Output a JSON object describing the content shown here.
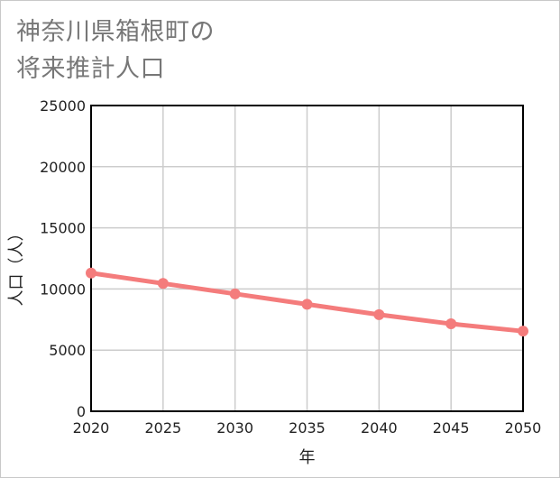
{
  "chart_data": {
    "type": "line",
    "title_lines": [
      "神奈川県箱根町の",
      "将来推計人口"
    ],
    "xlabel": "年",
    "ylabel": "人口（人）",
    "x": [
      2020,
      2025,
      2030,
      2035,
      2040,
      2045,
      2050
    ],
    "x_tick_labels": [
      "2020",
      "2025",
      "2030",
      "2035",
      "2040",
      "2045",
      "2050"
    ],
    "xlim": [
      2020,
      2050
    ],
    "ylim": [
      0,
      25000
    ],
    "y_ticks": [
      0,
      5000,
      10000,
      15000,
      20000,
      25000
    ],
    "y_tick_labels": [
      "0",
      "5000",
      "10000",
      "15000",
      "20000",
      "25000"
    ],
    "series": [
      {
        "name": "将来推計人口",
        "values": [
          11300,
          10450,
          9600,
          8750,
          7900,
          7150,
          6550
        ],
        "color": "#f47c7c"
      }
    ],
    "grid": true
  }
}
